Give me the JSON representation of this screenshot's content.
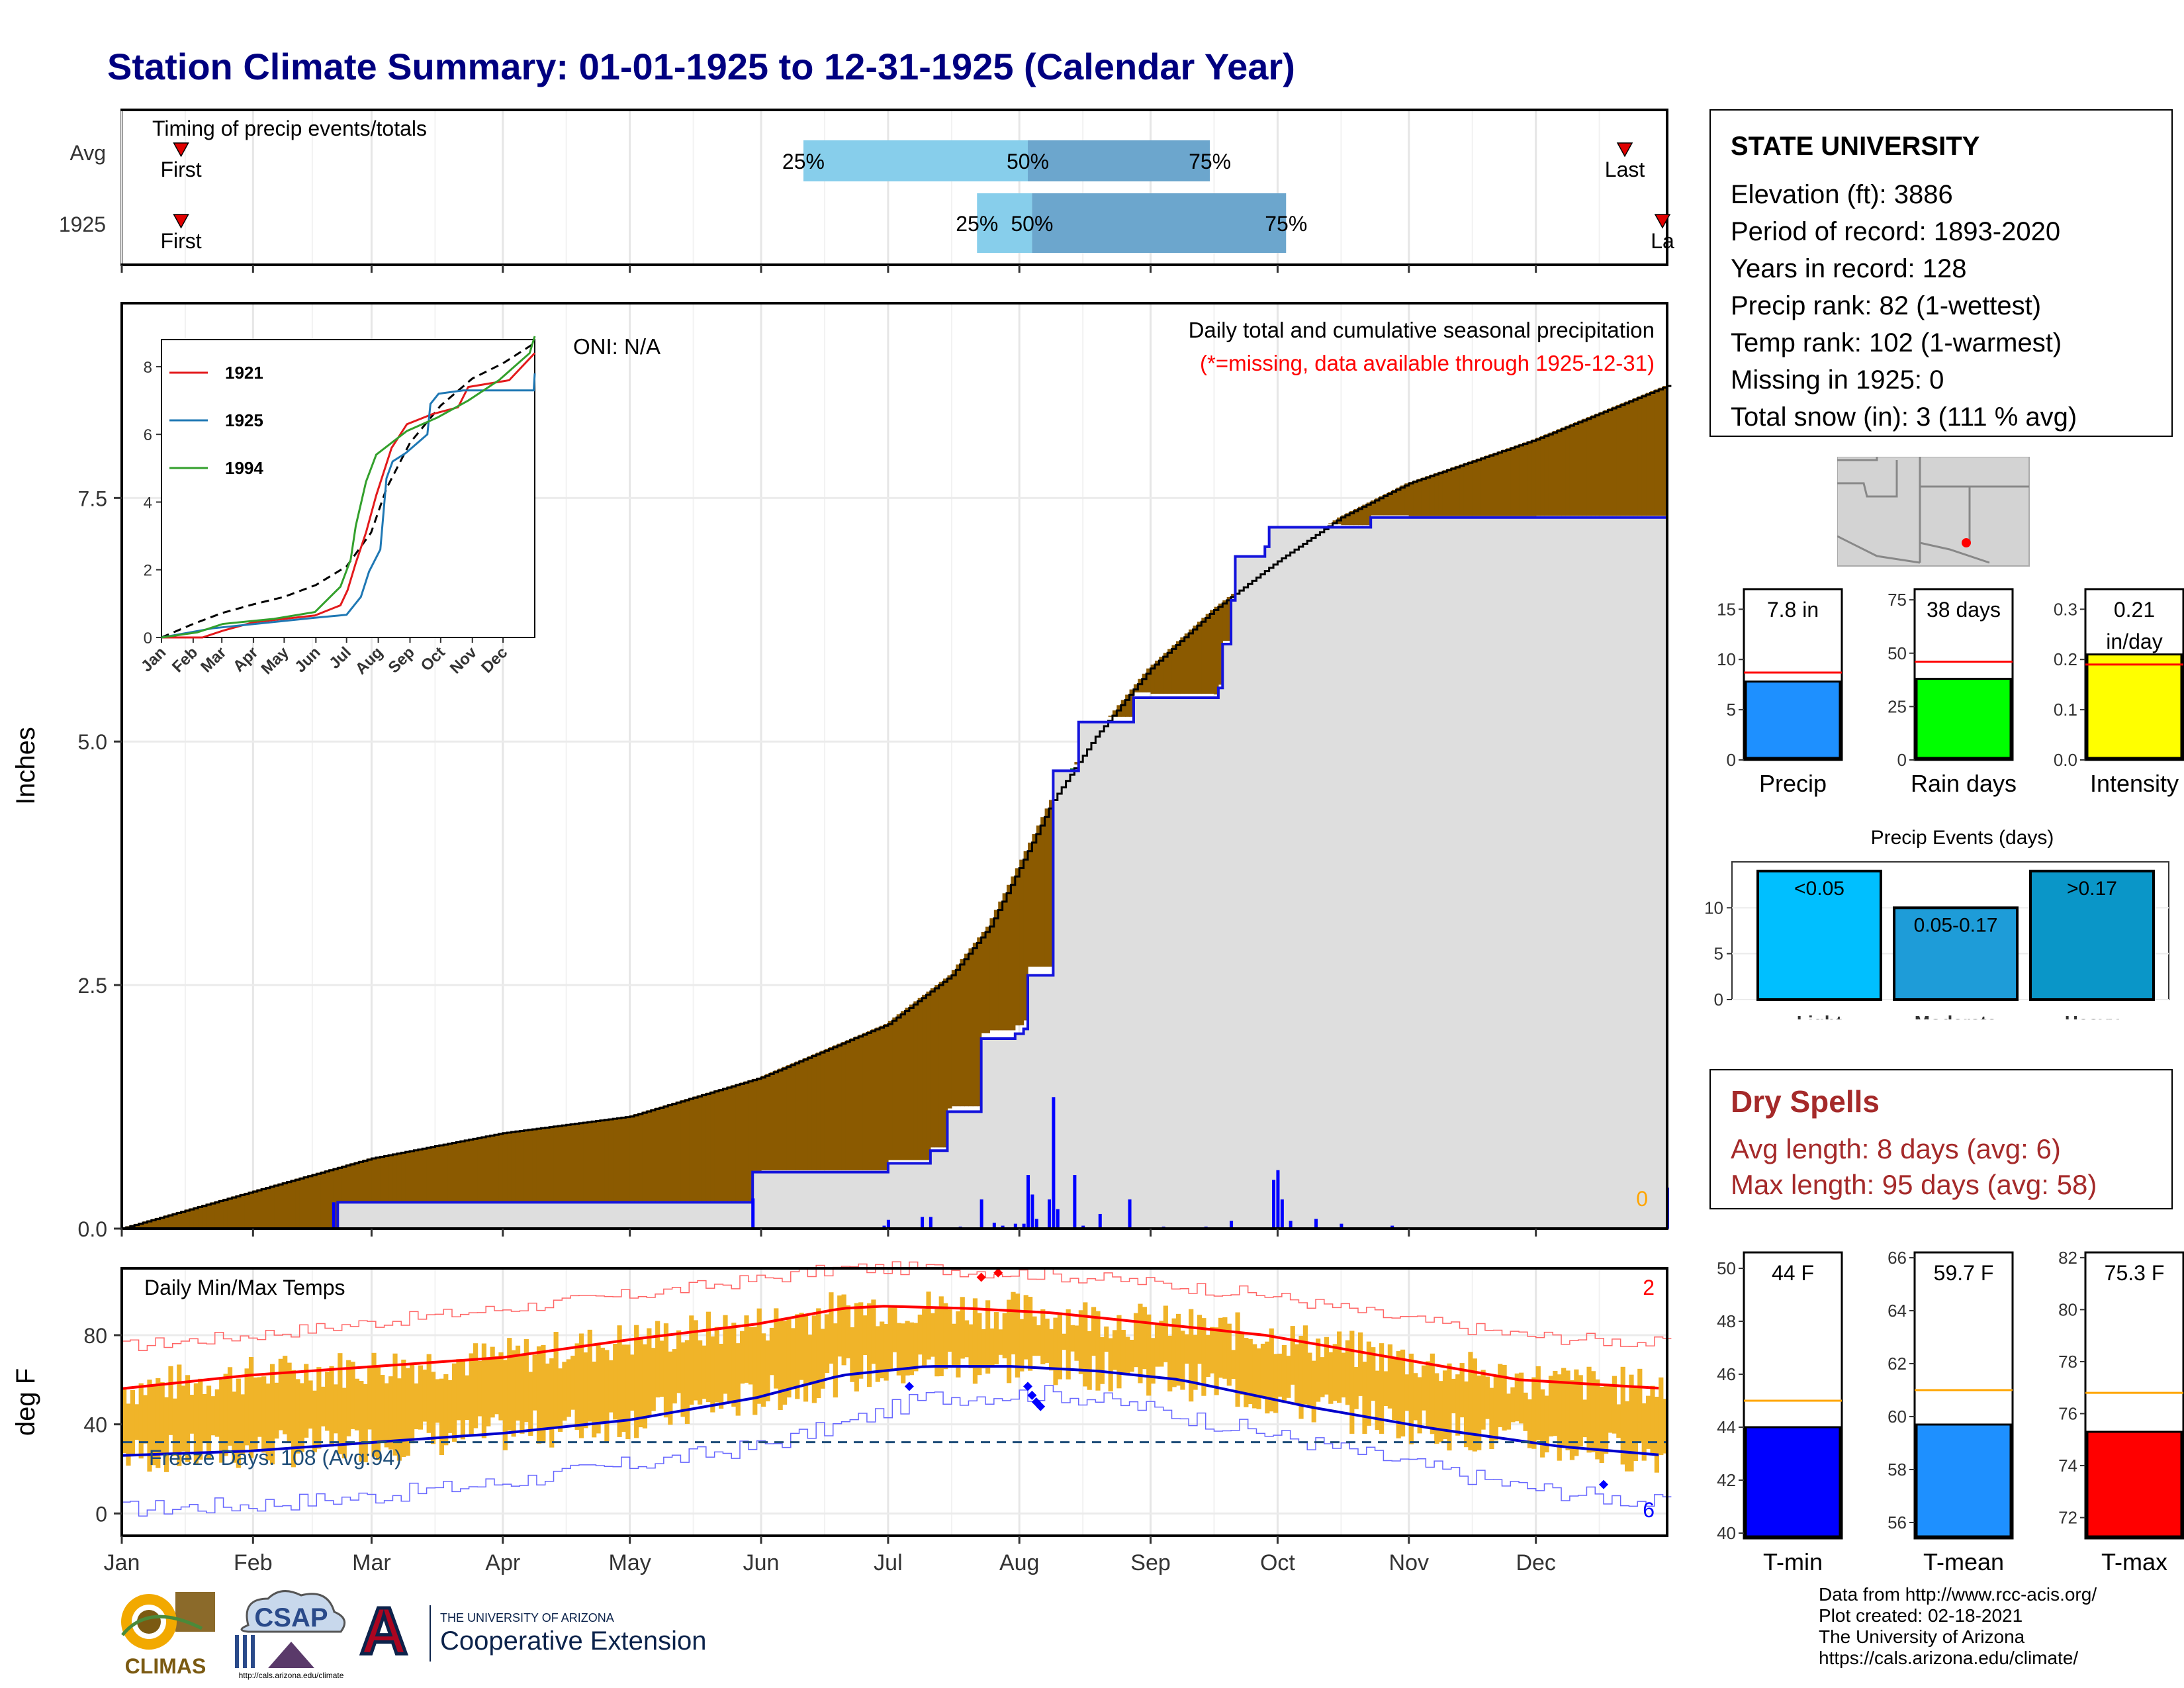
{
  "title": "Station Climate Summary: 01-01-1925 to 12-31-1925 (Calendar Year)",
  "timing": {
    "title": "Timing of precip events/totals",
    "row_labels": [
      "Avg",
      "1925"
    ],
    "avg": {
      "first_label": "First",
      "last_label": "Last",
      "p25": "25%",
      "p50": "50%",
      "p75": "75%"
    },
    "year": {
      "first_label": "First",
      "last_label": "La",
      "p25": "25%",
      "p50": "50%",
      "p75": "75%"
    }
  },
  "station": {
    "name": "STATE UNIVERSITY",
    "lines": [
      "Elevation (ft): 3886",
      "Period of record: 1893-2020",
      "Years in record: 128",
      "Precip rank: 82 (1-wettest)",
      "Temp rank: 102 (1-warmest)",
      "Missing in 1925: 0",
      "Total snow (in): 3 (111 % avg)"
    ]
  },
  "precip_main": {
    "title": "Daily total and cumulative seasonal precipitation",
    "note": "(*=missing, data available through 1925-12-31)",
    "oni": "ONI: N/A",
    "ylabel": "Inches",
    "missing_count": "0",
    "y_ticks": [
      "0.0",
      "2.5",
      "5.0",
      "7.5"
    ]
  },
  "inset": {
    "legend": [
      "1921",
      "1925",
      "1994"
    ],
    "y_ticks": [
      "0",
      "2",
      "4",
      "6",
      "8"
    ],
    "x_ticks": [
      "Jan",
      "Feb",
      "Mar",
      "Apr",
      "May",
      "Jun",
      "Jul",
      "Aug",
      "Sep",
      "Oct",
      "Nov",
      "Dec"
    ]
  },
  "temps": {
    "title": "Daily Min/Max Temps",
    "ylabel": "deg F",
    "freeze": "Freeze Days: 108 (Avg:94)",
    "record_high_count": "2",
    "record_low_count": "6",
    "y_ticks": [
      "0",
      "40",
      "80"
    ]
  },
  "months": [
    "Jan",
    "Feb",
    "Mar",
    "Apr",
    "May",
    "Jun",
    "Jul",
    "Aug",
    "Sep",
    "Oct",
    "Nov",
    "Dec"
  ],
  "precip_bars": {
    "labels": [
      "7.8 in",
      "38 days",
      "0.21 in/day"
    ],
    "label_lines": [
      [
        "7.8 in"
      ],
      [
        "38 days"
      ],
      [
        "0.21",
        "in/day"
      ]
    ],
    "names": [
      "Precip",
      "Rain days",
      "Intensity"
    ],
    "ticks": [
      [
        "0",
        "5",
        "10",
        "15"
      ],
      [
        "0",
        "25",
        "50",
        "75"
      ],
      [
        "0.0",
        "0.1",
        "0.2",
        "0.3"
      ]
    ]
  },
  "events": {
    "title": "Precip Events (days)",
    "labels": [
      "<0.05",
      "0.05-0.17",
      ">0.17"
    ],
    "names": [
      "Light",
      "Moderate",
      "Heavy"
    ],
    "ticks": [
      "0",
      "5",
      "10"
    ]
  },
  "dry_spells": {
    "title": "Dry Spells",
    "avg": "Avg length: 8 days (avg: 6)",
    "max": "Max length: 95 days (avg: 58)"
  },
  "temp_bars": {
    "labels": [
      "44 F",
      "59.7 F",
      "75.3 F"
    ],
    "names": [
      "T-min",
      "T-mean",
      "T-max"
    ],
    "ticks": [
      [
        "40",
        "42",
        "44",
        "46",
        "48",
        "50"
      ],
      [
        "56",
        "58",
        "60",
        "62",
        "64",
        "66"
      ],
      [
        "72",
        "74",
        "76",
        "78",
        "80",
        "82"
      ]
    ]
  },
  "credits": [
    "Data from http://www.rcc-acis.org/",
    "Plot created: 02-18-2021",
    "The University of Arizona",
    "https://cals.arizona.edu/climate/"
  ],
  "logos": {
    "climas": "CLIMAS",
    "csap": "CSAP",
    "csap_url": "http://cals.arizona.edu/climate",
    "ua_letter": "A",
    "ua_line1": "THE UNIVERSITY OF ARIZONA",
    "ua_line2": "Cooperative Extension"
  },
  "chart_data": [
    {
      "type": "bar",
      "name": "timing",
      "categories": [
        "Avg",
        "1925"
      ],
      "series": [
        {
          "name": "Avg",
          "first_doy": 14,
          "p25_doy": 161,
          "p50_doy": 214,
          "p75_doy": 257,
          "last_doy": 355
        },
        {
          "name": "1925",
          "first_doy": 14,
          "p25_doy": 202,
          "p50_doy": 215,
          "p75_doy": 275,
          "last_doy": 365
        }
      ],
      "colors": {
        "first_half": "#87ceeb",
        "second_half": "#6ca6cd",
        "marker": "#e00000"
      }
    },
    {
      "type": "area",
      "name": "cumulative precipitation",
      "ylabel": "Inches",
      "ylim": [
        0,
        9.5
      ],
      "x_unit": "day of year",
      "avg_cumulative": [
        [
          0,
          0
        ],
        [
          31,
          0.38
        ],
        [
          59,
          0.72
        ],
        [
          90,
          0.98
        ],
        [
          120,
          1.15
        ],
        [
          151,
          1.55
        ],
        [
          181,
          2.1
        ],
        [
          196,
          2.6
        ],
        [
          205,
          3.1
        ],
        [
          212,
          3.7
        ],
        [
          220,
          4.4
        ],
        [
          230,
          5.05
        ],
        [
          243,
          5.75
        ],
        [
          258,
          6.35
        ],
        [
          273,
          6.85
        ],
        [
          288,
          7.3
        ],
        [
          304,
          7.65
        ],
        [
          334,
          8.1
        ],
        [
          365,
          8.65
        ]
      ],
      "year_cumulative": [
        [
          0,
          0
        ],
        [
          50,
          0
        ],
        [
          51,
          0.27
        ],
        [
          148,
          0.27
        ],
        [
          149,
          0.58
        ],
        [
          180,
          0.58
        ],
        [
          181,
          0.67
        ],
        [
          190,
          0.67
        ],
        [
          191,
          0.8
        ],
        [
          194,
          0.8
        ],
        [
          195,
          1.2
        ],
        [
          202,
          1.2
        ],
        [
          203,
          1.95
        ],
        [
          210,
          1.95
        ],
        [
          211,
          2.0
        ],
        [
          213,
          2.05
        ],
        [
          214,
          2.6
        ],
        [
          219,
          2.6
        ],
        [
          220,
          4.7
        ],
        [
          225,
          4.7
        ],
        [
          226,
          5.2
        ],
        [
          238,
          5.2
        ],
        [
          239,
          5.45
        ],
        [
          259,
          5.55
        ],
        [
          260,
          6.0
        ],
        [
          262,
          6.45
        ],
        [
          263,
          6.9
        ],
        [
          270,
          7.0
        ],
        [
          271,
          7.2
        ],
        [
          295,
          7.3
        ],
        [
          364,
          7.3
        ],
        [
          365,
          7.8
        ]
      ],
      "daily_precip": [
        [
          50,
          0.27
        ],
        [
          149,
          0.31
        ],
        [
          175,
          0.01
        ],
        [
          180,
          0.03
        ],
        [
          181,
          0.09
        ],
        [
          189,
          0.12
        ],
        [
          191,
          0.12
        ],
        [
          198,
          0.02
        ],
        [
          203,
          0.3
        ],
        [
          206,
          0.06
        ],
        [
          208,
          0.03
        ],
        [
          211,
          0.05
        ],
        [
          213,
          0.05
        ],
        [
          214,
          0.55
        ],
        [
          215,
          0.35
        ],
        [
          216,
          0.1
        ],
        [
          219,
          0.3
        ],
        [
          220,
          1.35
        ],
        [
          221,
          0.2
        ],
        [
          225,
          0.55
        ],
        [
          227,
          0.03
        ],
        [
          231,
          0.15
        ],
        [
          238,
          0.3
        ],
        [
          246,
          0.02
        ],
        [
          256,
          0.02
        ],
        [
          262,
          0.08
        ],
        [
          272,
          0.5
        ],
        [
          273,
          0.6
        ],
        [
          274,
          0.3
        ],
        [
          276,
          0.08
        ],
        [
          282,
          0.1
        ],
        [
          288,
          0.05
        ],
        [
          300,
          0.03
        ],
        [
          365,
          0.42
        ]
      ],
      "colors": {
        "surplus": "#8b5a00",
        "deficit": "#007800",
        "year_fill": "#dedede",
        "year_line": "#1414dc"
      }
    },
    {
      "type": "line",
      "name": "inset cumulative comparison",
      "ylim": [
        0,
        8.8
      ],
      "series": [
        {
          "name": "avg",
          "values": [
            [
              0,
              0
            ],
            [
              31,
              0.4
            ],
            [
              59,
              0.72
            ],
            [
              90,
              0.98
            ],
            [
              120,
              1.2
            ],
            [
              151,
              1.55
            ],
            [
              181,
              2.1
            ],
            [
              205,
              3.1
            ],
            [
              220,
              4.4
            ],
            [
              243,
              5.75
            ],
            [
              273,
              6.85
            ],
            [
              304,
              7.65
            ],
            [
              334,
              8.1
            ],
            [
              365,
              8.7
            ]
          ]
        },
        {
          "name": "1921",
          "values": [
            [
              0,
              0
            ],
            [
              40,
              0
            ],
            [
              60,
              0.2
            ],
            [
              90,
              0.45
            ],
            [
              150,
              0.65
            ],
            [
              175,
              0.95
            ],
            [
              182,
              1.4
            ],
            [
              190,
              2.2
            ],
            [
              200,
              3.1
            ],
            [
              210,
              4.2
            ],
            [
              225,
              5.6
            ],
            [
              240,
              6.3
            ],
            [
              265,
              6.6
            ],
            [
              290,
              6.8
            ],
            [
              300,
              7.4
            ],
            [
              340,
              7.6
            ],
            [
              365,
              8.4
            ]
          ]
        },
        {
          "name": "1925",
          "values": [
            [
              0,
              0
            ],
            [
              50,
              0.27
            ],
            [
              149,
              0.58
            ],
            [
              181,
              0.67
            ],
            [
              195,
              1.2
            ],
            [
              203,
              1.95
            ],
            [
              214,
              2.6
            ],
            [
              220,
              4.7
            ],
            [
              226,
              5.2
            ],
            [
              239,
              5.45
            ],
            [
              260,
              6.0
            ],
            [
              263,
              6.9
            ],
            [
              271,
              7.2
            ],
            [
              295,
              7.3
            ],
            [
              364,
              7.3
            ],
            [
              365,
              7.8
            ]
          ]
        },
        {
          "name": "1994",
          "values": [
            [
              0,
              0
            ],
            [
              35,
              0.15
            ],
            [
              60,
              0.4
            ],
            [
              110,
              0.55
            ],
            [
              150,
              0.75
            ],
            [
              175,
              1.5
            ],
            [
              185,
              2.3
            ],
            [
              190,
              3.3
            ],
            [
              200,
              4.6
            ],
            [
              210,
              5.4
            ],
            [
              240,
              6.1
            ],
            [
              270,
              6.5
            ],
            [
              300,
              7.0
            ],
            [
              330,
              7.6
            ],
            [
              345,
              8.0
            ],
            [
              360,
              8.4
            ],
            [
              365,
              8.9
            ]
          ]
        }
      ],
      "colors": {
        "avg": "#000000",
        "1921": "#e31a1c",
        "1925": "#1f78b4",
        "1994": "#33a02c"
      }
    },
    {
      "type": "line",
      "name": "daily temps",
      "ylabel": "deg F",
      "ylim": [
        -10,
        110
      ],
      "x_unit": "day of year",
      "avg_max": [
        [
          0,
          56
        ],
        [
          30,
          62
        ],
        [
          60,
          66
        ],
        [
          90,
          70
        ],
        [
          120,
          78
        ],
        [
          150,
          85
        ],
        [
          170,
          92
        ],
        [
          180,
          93
        ],
        [
          200,
          92
        ],
        [
          220,
          90
        ],
        [
          240,
          86
        ],
        [
          270,
          80
        ],
        [
          300,
          70
        ],
        [
          330,
          60
        ],
        [
          365,
          56
        ]
      ],
      "avg_min": [
        [
          0,
          26
        ],
        [
          30,
          28
        ],
        [
          60,
          32
        ],
        [
          90,
          36
        ],
        [
          120,
          42
        ],
        [
          150,
          52
        ],
        [
          170,
          62
        ],
        [
          190,
          66
        ],
        [
          210,
          66
        ],
        [
          230,
          64
        ],
        [
          250,
          60
        ],
        [
          280,
          48
        ],
        [
          310,
          38
        ],
        [
          340,
          30
        ],
        [
          365,
          26
        ]
      ],
      "record_max": [
        [
          0,
          75
        ],
        [
          30,
          80
        ],
        [
          60,
          86
        ],
        [
          90,
          92
        ],
        [
          120,
          98
        ],
        [
          150,
          105
        ],
        [
          170,
          110
        ],
        [
          190,
          110
        ],
        [
          220,
          107
        ],
        [
          240,
          104
        ],
        [
          270,
          98
        ],
        [
          300,
          88
        ],
        [
          330,
          80
        ],
        [
          365,
          76
        ]
      ],
      "record_min": [
        [
          0,
          2
        ],
        [
          30,
          4
        ],
        [
          60,
          8
        ],
        [
          90,
          14
        ],
        [
          120,
          22
        ],
        [
          150,
          30
        ],
        [
          170,
          40
        ],
        [
          190,
          52
        ],
        [
          220,
          54
        ],
        [
          240,
          48
        ],
        [
          270,
          36
        ],
        [
          300,
          24
        ],
        [
          330,
          12
        ],
        [
          365,
          4
        ]
      ],
      "freeze_line": 32,
      "colors": {
        "bars": "#f0b429",
        "avg_max": "#ff0000",
        "avg_min": "#0000cc",
        "record_max": "#ff6666",
        "record_min": "#6666ff",
        "freeze": "#1f4e79"
      }
    },
    {
      "type": "bar",
      "name": "precip summary bars",
      "categories": [
        "Precip",
        "Rain days",
        "Intensity"
      ],
      "values": [
        7.8,
        38,
        0.21
      ],
      "averages": [
        8.7,
        46,
        0.19
      ],
      "ylims": [
        [
          0,
          17
        ],
        [
          0,
          80
        ],
        [
          0,
          0.34
        ]
      ],
      "colors": [
        "#1e90ff",
        "#00ff00",
        "#ffff00"
      ],
      "avg_line_color": "#ff0000"
    },
    {
      "type": "bar",
      "name": "precip events",
      "title": "Precip Events (days)",
      "categories": [
        "Light",
        "Moderate",
        "Heavy"
      ],
      "values": [
        14,
        10,
        14
      ],
      "ylim": [
        0,
        15
      ],
      "colors": [
        "#00bfff",
        "#1e9cd8",
        "#0a96c8"
      ]
    },
    {
      "type": "bar",
      "name": "temperature summary bars",
      "categories": [
        "T-min",
        "T-mean",
        "T-max"
      ],
      "values": [
        44.0,
        59.7,
        75.3
      ],
      "averages": [
        45.0,
        61.0,
        76.8
      ],
      "ylims": [
        [
          39.8,
          50.6
        ],
        [
          55.4,
          66.2
        ],
        [
          71.2,
          82.2
        ]
      ],
      "colors": [
        "#0000ff",
        "#1e90ff",
        "#ff0000"
      ],
      "avg_line_color": "#ffa500"
    }
  ]
}
